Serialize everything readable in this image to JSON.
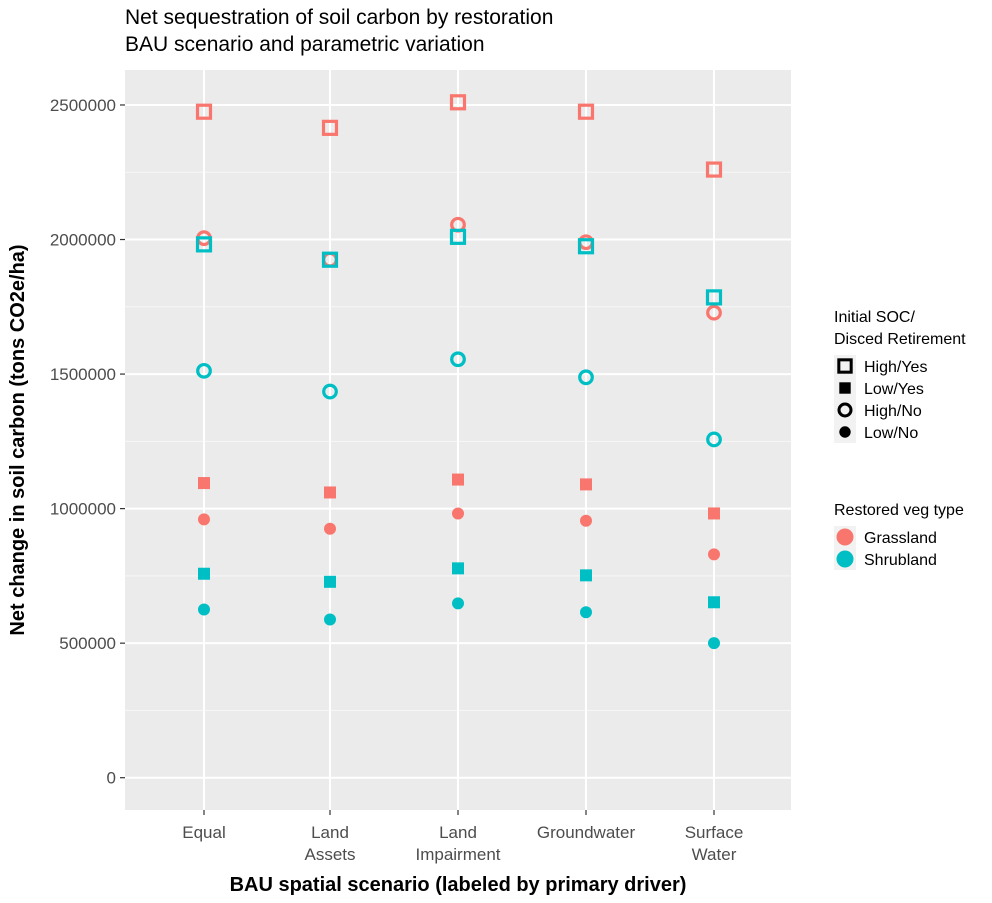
{
  "chart_data": {
    "type": "scatter",
    "title": [
      "Net sequestration of soil carbon by restoration",
      "BAU scenario and parametric variation"
    ],
    "xlabel": "BAU spatial scenario (labeled by primary driver)",
    "ylabel": "Net change in soil carbon (tons CO2e/ha)",
    "categories": [
      [
        "Equal"
      ],
      [
        "Land",
        "Assets"
      ],
      [
        "Land",
        "Impairment"
      ],
      [
        "Groundwater"
      ],
      [
        "Surface",
        "Water"
      ]
    ],
    "ylim": [
      -120000,
      2630000
    ],
    "yticks": [
      0,
      500000,
      1000000,
      1500000,
      2000000,
      2500000
    ],
    "ytick_labels": [
      "0",
      "500000",
      "1000000",
      "1500000",
      "2000000",
      "2500000"
    ],
    "grid": true,
    "legend_placement": "right",
    "series": [
      {
        "veg": "Grassland",
        "shape": "High/Yes",
        "values": [
          2475000,
          2415000,
          2510000,
          2475000,
          2260000
        ]
      },
      {
        "veg": "Grassland",
        "shape": "High/No",
        "values": [
          2005000,
          1925000,
          2055000,
          1990000,
          1728000
        ]
      },
      {
        "veg": "Grassland",
        "shape": "Low/Yes",
        "values": [
          1095000,
          1060000,
          1108000,
          1090000,
          982000
        ]
      },
      {
        "veg": "Grassland",
        "shape": "Low/No",
        "values": [
          960000,
          925000,
          982000,
          955000,
          830000
        ]
      },
      {
        "veg": "Shrubland",
        "shape": "High/Yes",
        "values": [
          1982000,
          1925000,
          2010000,
          1975000,
          1785000
        ]
      },
      {
        "veg": "Shrubland",
        "shape": "High/No",
        "values": [
          1512000,
          1435000,
          1555000,
          1488000,
          1257000
        ]
      },
      {
        "veg": "Shrubland",
        "shape": "Low/Yes",
        "values": [
          758000,
          728000,
          778000,
          752000,
          652000
        ]
      },
      {
        "veg": "Shrubland",
        "shape": "Low/No",
        "values": [
          625000,
          588000,
          648000,
          615000,
          500000
        ]
      }
    ],
    "legend_shape": {
      "title": [
        "Initial SOC/",
        "Disced Retirement"
      ],
      "items": [
        "High/Yes",
        "Low/Yes",
        "High/No",
        "Low/No"
      ]
    },
    "legend_color": {
      "title": "Restored veg type",
      "items": [
        "Grassland",
        "Shrubland"
      ]
    },
    "colors": {
      "Grassland": "#F8766D",
      "Shrubland": "#00BFC4",
      "panel": "#EBEBEB",
      "grid": "#ffffff",
      "legend_key_bg": "#F2F2F2"
    }
  }
}
